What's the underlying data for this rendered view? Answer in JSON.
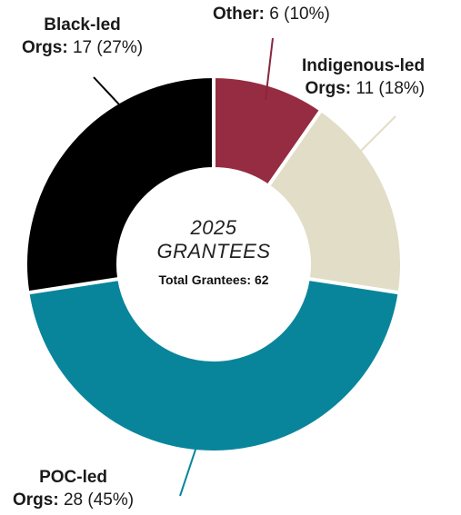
{
  "chart_data": {
    "type": "pie",
    "style": "donut",
    "center_title": [
      "2025",
      "GRANTEES"
    ],
    "center_total": "Total Grantees: 62",
    "slices": [
      {
        "label_line1": "Other:",
        "label_line2": "",
        "value_text": "6 (10%)",
        "value": 6,
        "percent": 10,
        "color": "#962c41"
      },
      {
        "label_line1": "Indigenous-led",
        "label_line2": "Orgs:",
        "value_text": "11 (18%)",
        "value": 11,
        "percent": 18,
        "color": "#e2ddc7"
      },
      {
        "label_line1": "POC-led",
        "label_line2": "Orgs:",
        "value_text": "28 (45%)",
        "value": 28,
        "percent": 45,
        "color": "#08859b"
      },
      {
        "label_line1": "Black-led",
        "label_line2": "Orgs:",
        "value_text": "17 (27%)",
        "value": 17,
        "percent": 27,
        "color": "#000000"
      }
    ],
    "leader_color": "#8a2540"
  }
}
